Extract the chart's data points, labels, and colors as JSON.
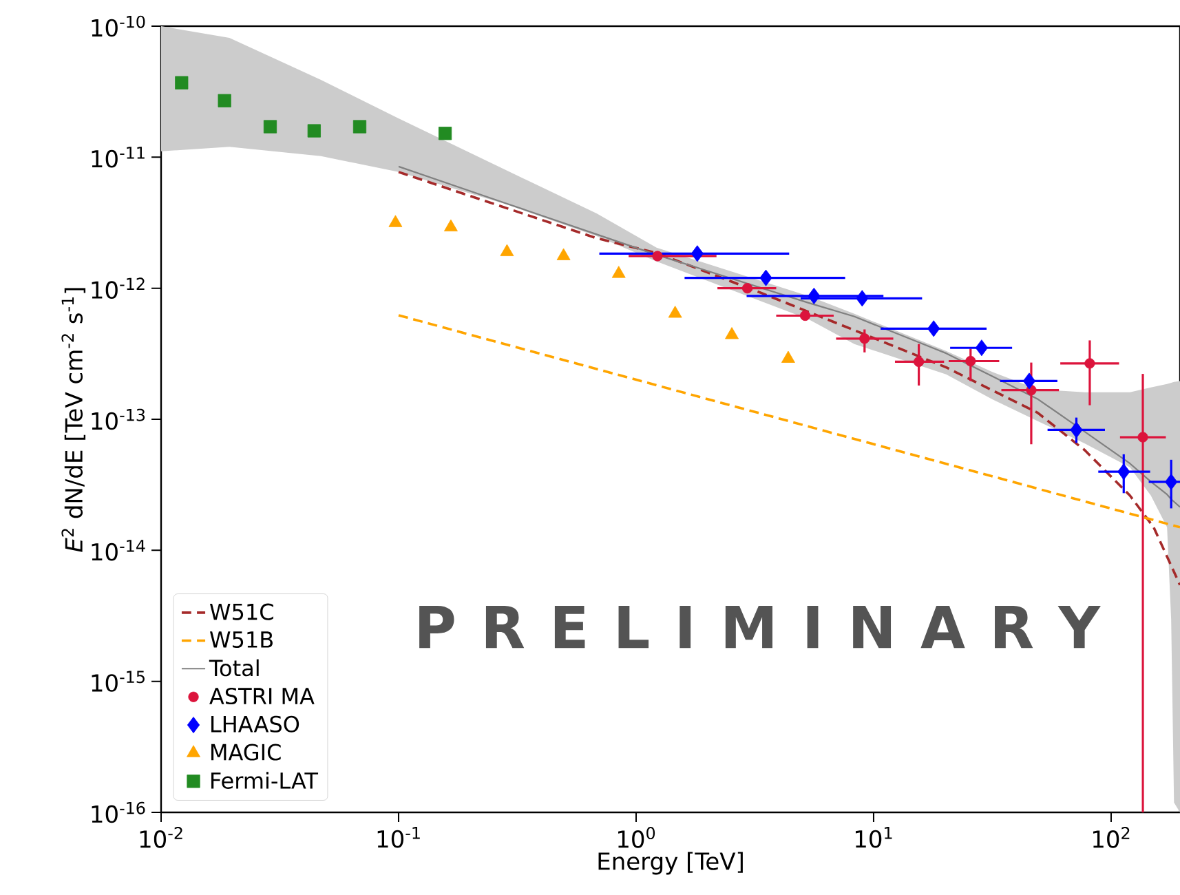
{
  "chart_data": {
    "type": "scatter",
    "xlabel": "Energy [TeV]",
    "ylabel": "*E*$^{2}$ dN/dE [TeV cm$^{-2}$ s$^{-1}$]",
    "log": "xy",
    "xlim": [
      0.01,
      195
    ],
    "ylim": [
      1e-16,
      1e-10
    ],
    "xticks": [
      {
        "value": 0.01,
        "label": "10$^{-2}$"
      },
      {
        "value": 0.1,
        "label": "10$^{-1}$"
      },
      {
        "value": 1,
        "label": "10$^{0}$"
      },
      {
        "value": 10,
        "label": "10$^{1}$"
      },
      {
        "value": 100,
        "label": "10$^{2}$"
      }
    ],
    "yticks": [
      {
        "value": 1e-16,
        "label": "10$^{-16}$"
      },
      {
        "value": 1e-15,
        "label": "10$^{-15}$"
      },
      {
        "value": 1e-14,
        "label": "10$^{-14}$"
      },
      {
        "value": 1e-13,
        "label": "10$^{-13}$"
      },
      {
        "value": 1e-12,
        "label": "10$^{-12}$"
      },
      {
        "value": 1e-11,
        "label": "10$^{-11}$"
      },
      {
        "value": 1e-10,
        "label": "10$^{-10}$"
      }
    ],
    "legend": "bottom left",
    "annotations": [
      "P R E L I M I N A R Y"
    ],
    "series": [
      {
        "name": "W51C",
        "type": "line",
        "line_style": "dashed",
        "marker": "none",
        "color": "#a52a2a",
        "x": [
          0.1,
          0.682,
          1.23,
          3.39,
          8.3,
          20.3,
          49.1,
          77.4,
          120,
          151,
          195
        ],
        "values": [
          7.71e-12,
          2.41e-12,
          1.85e-12,
          9.16e-13,
          4.78e-13,
          2.48e-13,
          1.12e-13,
          5.82e-14,
          2.62e-14,
          1.5e-14,
          5.43e-15
        ]
      },
      {
        "name": "W51B",
        "type": "line",
        "line_style": "dashed",
        "marker": "none",
        "color": "#ffa500",
        "x": [
          0.1,
          195
        ],
        "values": [
          6.22e-13,
          1.5e-14
        ]
      },
      {
        "name": "Total",
        "type": "line",
        "line_style": "solid",
        "marker": "none",
        "color": "#808080",
        "x": [
          0.01,
          0.0194,
          0.0471,
          0.1,
          0.281,
          0.682,
          1.22,
          5.32,
          8.3,
          20.2,
          31.6,
          49.3,
          77.3,
          120,
          147,
          172,
          179,
          184,
          195
        ],
        "values": [
          null,
          null,
          null,
          8.49e-12,
          4.47e-12,
          2.58e-12,
          1.8e-12,
          7.74e-13,
          6.08e-13,
          3.19e-13,
          2.13e-13,
          1.42e-13,
          8.05e-14,
          4.6e-14,
          3.34e-14,
          2.67e-14,
          2.46e-14,
          2.35e-14,
          2.14e-14
        ],
        "upper": [
          1e-10,
          8.15e-11,
          3.89e-11,
          1.98e-11,
          8.02e-12,
          3.73e-12,
          2.04e-12,
          8.73e-13,
          6.38e-13,
          3.32e-13,
          2.3e-13,
          1.69e-13,
          1.61e-13,
          1.61e-13,
          1.75e-13,
          1.86e-13,
          1.9e-13,
          1.93e-13,
          1.96e-13
        ],
        "lower": [
          1.11e-11,
          1.2e-11,
          1.02e-11,
          7.71e-12,
          4.4e-12,
          2.5e-12,
          1.6e-12,
          5.79e-13,
          3.75e-13,
          2.2e-13,
          1.42e-13,
          9.66e-14,
          6.56e-14,
          4.3e-14,
          2.62e-14,
          1.5e-14,
          2.97e-15,
          1.19e-16,
          1e-16
        ]
      },
      {
        "name": "ASTRI MA",
        "type": "scatter",
        "marker": "circle",
        "color": "#dc143c",
        "x": [
          1.23,
          2.94,
          5.15,
          9.16,
          15.5,
          25.6,
          46.1,
          81.3,
          136
        ],
        "values": [
          1.76e-12,
          1e-12,
          6.18e-13,
          4.13e-13,
          2.75e-13,
          2.78e-13,
          1.67e-13,
          2.67e-13,
          7.3e-14
        ],
        "errors": [
          null,
          null,
          null,
          [
            3.24e-13,
            4.85e-13
          ],
          [
            1.81e-13,
            3.75e-13
          ],
          [
            1.96e-13,
            3.46e-13
          ],
          [
            6.45e-14,
            2.71e-13
          ],
          [
            1.28e-13,
            4e-13
          ],
          [
            1e-16,
            2.22e-13
          ]
        ],
        "xerrors": [
          [
            0.93,
            2.18
          ],
          [
            2.2,
            3.89
          ],
          [
            3.89,
            6.79
          ],
          [
            6.95,
            12.1
          ],
          [
            12.3,
            19.8
          ],
          [
            20.7,
            33.8
          ],
          [
            34.5,
            60.3
          ],
          [
            61.1,
            108
          ],
          [
            109,
            170
          ]
        ]
      },
      {
        "name": "LHAASO",
        "type": "scatter",
        "marker": "diamond",
        "color": "#0000ff",
        "x": [
          1.81,
          3.52,
          5.61,
          8.95,
          17.9,
          28.5,
          45.2,
          71.4,
          113,
          179
        ],
        "values": [
          1.84e-12,
          1.2e-12,
          8.73e-13,
          8.38e-13,
          4.92e-13,
          3.51e-13,
          1.96e-13,
          8.3e-14,
          3.98e-14,
          3.33e-14
        ],
        "errors": [
          null,
          null,
          null,
          null,
          null,
          null,
          null,
          [
            6.6e-14,
            1.03e-13
          ],
          [
            2.73e-14,
            5.41e-14
          ],
          [
            2.09e-14,
            4.91e-14
          ]
        ],
        "xerrors": [
          [
            0.7,
            4.41
          ],
          [
            1.6,
            7.59
          ],
          [
            2.92,
            11.0
          ],
          [
            4.93,
            16.0
          ],
          [
            10.7,
            29.9
          ],
          [
            21.0,
            38.3
          ],
          [
            34.1,
            59.4
          ],
          [
            54.0,
            94.2
          ],
          [
            88.3,
            146
          ],
          [
            144,
            195
          ]
        ]
      },
      {
        "name": "MAGIC",
        "type": "scatter",
        "marker": "triangle",
        "color": "#ffa500",
        "x": [
          0.097,
          0.166,
          0.286,
          0.495,
          0.845,
          1.46,
          2.53,
          4.37
        ],
        "values": [
          3.15e-12,
          2.92e-12,
          1.89e-12,
          1.76e-12,
          1.29e-12,
          6.4e-13,
          4.4e-13,
          2.9e-13
        ]
      },
      {
        "name": "Fermi-LAT",
        "type": "scatter",
        "marker": "square",
        "color": "#228b22",
        "x": [
          0.0122,
          0.0185,
          0.0288,
          0.0441,
          0.0686,
          0.157
        ],
        "values": [
          3.7e-11,
          2.7e-11,
          1.71e-11,
          1.59e-11,
          1.71e-11,
          1.52e-11
        ]
      }
    ]
  }
}
